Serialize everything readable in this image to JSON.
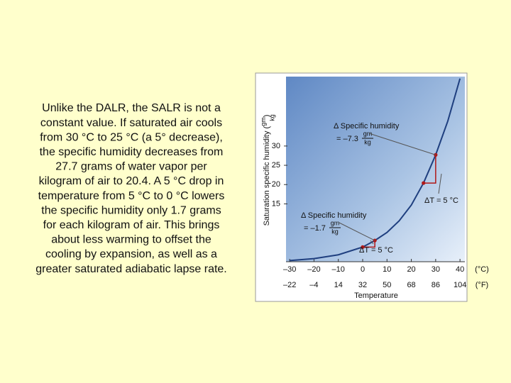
{
  "slide_text": [
    "Unlike the DALR, the SALR is not a",
    "constant value. If saturated air cools",
    "from 30 °C to 25 °C (a 5° decrease),",
    "the specific humidity decreases from",
    "27.7 grams of water vapor per",
    "kilogram of air to 20.4.  A 5 °C drop in",
    "temperature from 5 °C to 0 °C lowers",
    "the specific humidity only 1.7 grams",
    "for each kilogram of air. This brings",
    "about less warming to offset the",
    "cooling by expansion, as well as a",
    "greater saturated adiabatic lapse rate."
  ],
  "chart_data": {
    "type": "line",
    "xlabel": "Temperature",
    "ylabel": "Saturation specific humidity (",
    "ylabel_unit_num": "gm",
    "ylabel_unit_den": "kg",
    "ylabel_close": ")",
    "x": [
      -30,
      -20,
      -10,
      0,
      5,
      10,
      15,
      20,
      25,
      30,
      35,
      40
    ],
    "series": [
      {
        "color": "#1f3f7f",
        "values": [
          0.3,
          0.8,
          1.8,
          3.8,
          5.5,
          7.6,
          10.6,
          14.7,
          20.4,
          27.7,
          36.5,
          47.5
        ]
      }
    ],
    "highlight_points": {
      "x": [
        0,
        5,
        25,
        30
      ],
      "values": [
        3.8,
        5.5,
        20.4,
        27.7
      ],
      "color": "#b01818"
    },
    "xlim": [
      -31.5,
      42
    ],
    "ylim": [
      0,
      48
    ],
    "xticks": [
      {
        "value": -30,
        "label": "–30"
      },
      {
        "value": -20,
        "label": "–20"
      },
      {
        "value": -10,
        "label": "–10"
      },
      0,
      10,
      20,
      30,
      40
    ],
    "x_unit": "(°C)",
    "fahrenheit_labels": [
      {
        "value": -22,
        "label": "–22"
      },
      {
        "value": -4,
        "label": "–4"
      },
      14,
      32,
      50,
      68,
      86,
      104
    ],
    "x2_unit": "(°F)",
    "yticks": [
      15,
      20,
      25,
      30
    ],
    "annotations": [
      {
        "title": "Δ Specific humidity",
        "eq": "= –7.3",
        "num": "gm",
        "den": "kg",
        "dt": "ΔT = 5 °C"
      },
      {
        "title": "Δ Specific humidity",
        "eq": "= –1.7",
        "num": "gm",
        "den": "kg",
        "dt": "ΔT = 5 °C"
      }
    ]
  }
}
